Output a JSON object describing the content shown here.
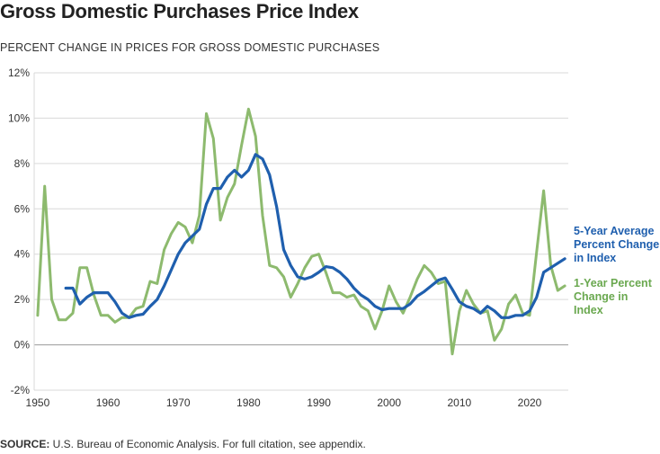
{
  "title": "Gross Domestic Purchases Price Index",
  "subtitle": "PERCENT CHANGE IN PRICES FOR GROSS DOMESTIC PURCHASES",
  "source_label": "SOURCE:",
  "source_text": " U.S. Bureau of Economic Analysis. For full citation, see appendix.",
  "colors": {
    "five_year": "#1f5fae",
    "one_year": "#8dba6e",
    "grid": "#d9d9d9",
    "zero": "#999999"
  },
  "chart_data": {
    "type": "line",
    "xlim": [
      1949.5,
      2025.5
    ],
    "ylim": [
      -2,
      12
    ],
    "x_ticks": [
      1950,
      1960,
      1970,
      1980,
      1990,
      2000,
      2010,
      2020
    ],
    "x_tick_labels": [
      "1950",
      "1960",
      "1970",
      "1980",
      "1990",
      "2000",
      "2010",
      "2020"
    ],
    "y_ticks": [
      -2,
      0,
      2,
      4,
      6,
      8,
      10,
      12
    ],
    "y_tick_labels": [
      "-2%",
      "0%",
      "2%",
      "4%",
      "6%",
      "8%",
      "10%",
      "12%"
    ],
    "series": [
      {
        "name": "1-Year Percent Change in Index",
        "label_lines": [
          "1-Year Percent",
          "Change in Index"
        ],
        "color": "#8dba6e",
        "x": [
          1950,
          1951,
          1952,
          1953,
          1954,
          1955,
          1956,
          1957,
          1958,
          1959,
          1960,
          1961,
          1962,
          1963,
          1964,
          1965,
          1966,
          1967,
          1968,
          1969,
          1970,
          1971,
          1972,
          1973,
          1974,
          1975,
          1976,
          1977,
          1978,
          1979,
          1980,
          1981,
          1982,
          1983,
          1984,
          1985,
          1986,
          1987,
          1988,
          1989,
          1990,
          1991,
          1992,
          1993,
          1994,
          1995,
          1996,
          1997,
          1998,
          1999,
          2000,
          2001,
          2002,
          2003,
          2004,
          2005,
          2006,
          2007,
          2008,
          2009,
          2010,
          2011,
          2012,
          2013,
          2014,
          2015,
          2016,
          2017,
          2018,
          2019,
          2020,
          2021,
          2022,
          2023,
          2024,
          2025
        ],
        "values": [
          1.3,
          7.0,
          2.0,
          1.1,
          1.1,
          1.4,
          3.4,
          3.4,
          2.2,
          1.3,
          1.3,
          1.0,
          1.2,
          1.2,
          1.6,
          1.7,
          2.8,
          2.7,
          4.2,
          4.9,
          5.4,
          5.2,
          4.5,
          5.7,
          10.2,
          9.1,
          5.5,
          6.5,
          7.1,
          8.8,
          10.4,
          9.2,
          5.7,
          3.5,
          3.4,
          3.0,
          2.1,
          2.7,
          3.4,
          3.9,
          4.0,
          3.2,
          2.3,
          2.3,
          2.1,
          2.2,
          1.7,
          1.5,
          0.7,
          1.5,
          2.6,
          1.9,
          1.4,
          2.1,
          2.9,
          3.5,
          3.2,
          2.7,
          2.8,
          -0.4,
          1.5,
          2.4,
          1.8,
          1.4,
          1.5,
          0.2,
          0.7,
          1.8,
          2.2,
          1.4,
          1.3,
          4.1,
          6.8,
          3.5,
          2.4,
          2.6
        ]
      },
      {
        "name": "5-Year Average Percent Change in Index",
        "label_lines": [
          "5-Year Average",
          "Percent Change",
          "in Index"
        ],
        "color": "#1f5fae",
        "x": [
          1954,
          1955,
          1956,
          1957,
          1958,
          1959,
          1960,
          1961,
          1962,
          1963,
          1964,
          1965,
          1966,
          1967,
          1968,
          1969,
          1970,
          1971,
          1972,
          1973,
          1974,
          1975,
          1976,
          1977,
          1978,
          1979,
          1980,
          1981,
          1982,
          1983,
          1984,
          1985,
          1986,
          1987,
          1988,
          1989,
          1990,
          1991,
          1992,
          1993,
          1994,
          1995,
          1996,
          1997,
          1998,
          1999,
          2000,
          2001,
          2002,
          2003,
          2004,
          2005,
          2006,
          2007,
          2008,
          2009,
          2010,
          2011,
          2012,
          2013,
          2014,
          2015,
          2016,
          2017,
          2018,
          2019,
          2020,
          2021,
          2022,
          2023,
          2024,
          2025
        ],
        "values": [
          2.5,
          2.5,
          1.8,
          2.1,
          2.3,
          2.3,
          2.3,
          1.9,
          1.4,
          1.2,
          1.3,
          1.35,
          1.7,
          2.0,
          2.6,
          3.3,
          4.0,
          4.5,
          4.8,
          5.1,
          6.2,
          6.9,
          6.9,
          7.4,
          7.7,
          7.4,
          7.7,
          8.4,
          8.2,
          7.5,
          6.1,
          4.2,
          3.5,
          3.0,
          2.9,
          3.0,
          3.2,
          3.45,
          3.4,
          3.2,
          2.9,
          2.5,
          2.2,
          2.0,
          1.7,
          1.55,
          1.6,
          1.6,
          1.6,
          1.8,
          2.15,
          2.35,
          2.6,
          2.85,
          2.95,
          2.45,
          1.9,
          1.7,
          1.6,
          1.4,
          1.7,
          1.5,
          1.2,
          1.2,
          1.3,
          1.3,
          1.5,
          2.1,
          3.2,
          3.4,
          3.6,
          3.8
        ]
      }
    ]
  }
}
